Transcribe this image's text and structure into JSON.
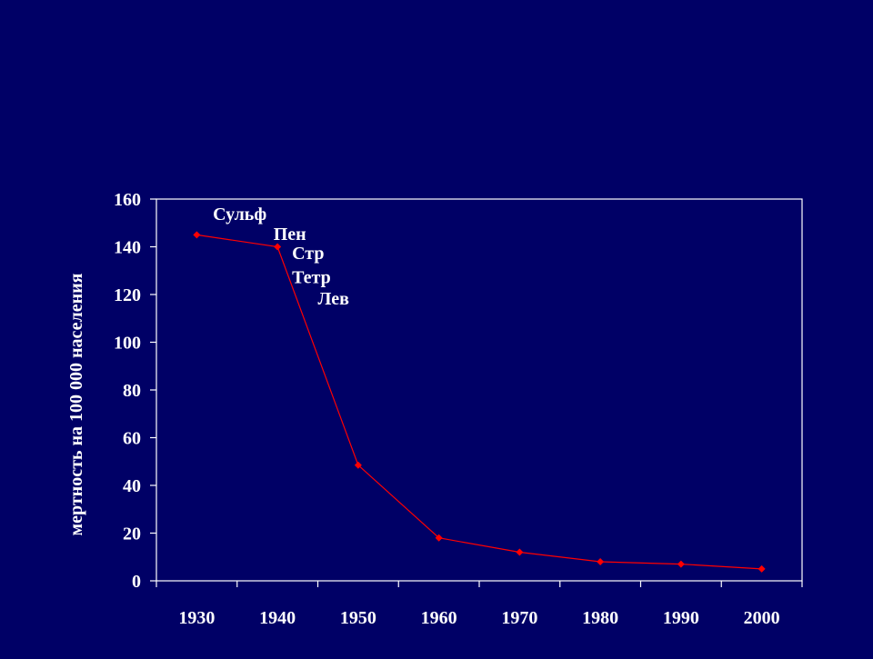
{
  "colors": {
    "background": "#000066",
    "axis": "#ffffff",
    "series": "#ff0000",
    "text": "#ffffff"
  },
  "chart_data": {
    "type": "line",
    "title": "",
    "xlabel": "",
    "ylabel": "мертность на 100 000 населения",
    "x": [
      1930,
      1940,
      1950,
      1960,
      1970,
      1980,
      1990,
      2000
    ],
    "series": [
      {
        "values": [
          145,
          140,
          48.5,
          18,
          12,
          8,
          7,
          5
        ]
      }
    ],
    "xlim": [
      1925,
      2005
    ],
    "ylim": [
      0,
      160
    ],
    "yticks": [
      0,
      20,
      40,
      60,
      80,
      100,
      120,
      140,
      160
    ],
    "xtick_labels": [
      "1930",
      "1940",
      "1950",
      "1960",
      "1970",
      "1980",
      "1990",
      "2000"
    ],
    "ytick_labels": [
      "0",
      "20",
      "40",
      "60",
      "80",
      "100",
      "120",
      "140",
      "160"
    ],
    "annotations": [
      {
        "text": "Сульф",
        "x": 1932,
        "y": 154
      },
      {
        "text": "Пен",
        "x": 1939.5,
        "y": 145.5
      },
      {
        "text": "Стр",
        "x": 1941.8,
        "y": 137.5
      },
      {
        "text": "Тетр",
        "x": 1941.8,
        "y": 127.5
      },
      {
        "text": "Лев",
        "x": 1945,
        "y": 118.5
      }
    ],
    "grid": false,
    "legend": "none"
  }
}
